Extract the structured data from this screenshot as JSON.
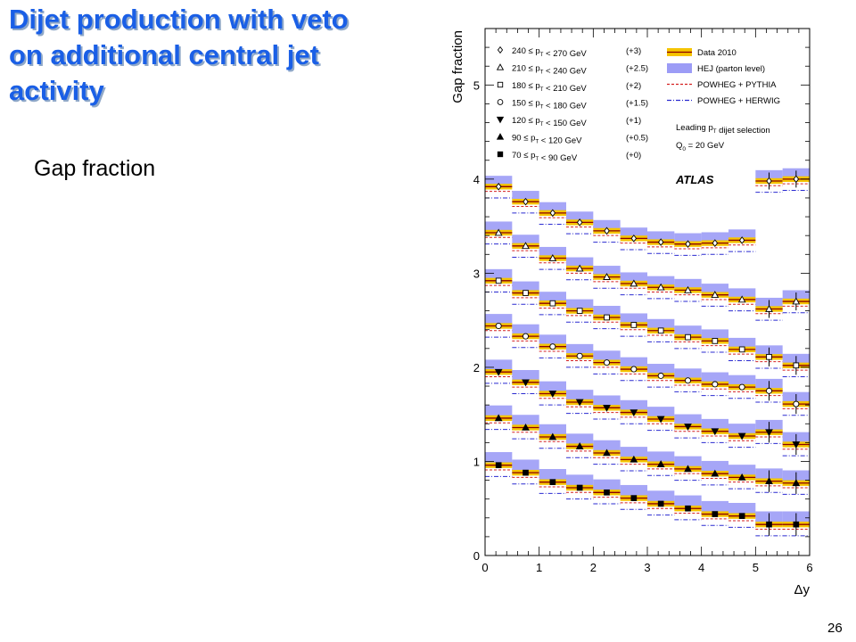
{
  "slide": {
    "title_lines": [
      "Dijet production with veto",
      "on additional central jet",
      "activity"
    ],
    "subtitle": "Gap fraction",
    "page_number": "26"
  },
  "chart_data": {
    "type": "line",
    "ylabel": "Gap fraction",
    "xlabel": "Δy",
    "xlim": [
      0,
      6
    ],
    "ylim": [
      0,
      5.6
    ],
    "x_ticks": [
      0,
      1,
      2,
      3,
      4,
      5,
      6
    ],
    "y_ticks": [
      0,
      1,
      2,
      3,
      4,
      5
    ],
    "bin_edges": [
      0,
      0.5,
      1,
      1.5,
      2,
      2.5,
      3,
      3.5,
      4,
      4.5,
      5,
      5.5,
      6
    ],
    "experiment_label": "ATLAS",
    "selection_text": [
      "Leading p_T dijet selection",
      "Q_0 = 20 GeV"
    ],
    "legend_models": [
      {
        "label": "Data 2010",
        "style": "data"
      },
      {
        "label": "HEJ (parton level)",
        "style": "hej"
      },
      {
        "label": "POWHEG + PYTHIA",
        "style": "pythia"
      },
      {
        "label": "POWHEG + HERWIG",
        "style": "herwig"
      }
    ],
    "colors": {
      "data_line": "#8b0000",
      "data_band": "#f5c400",
      "hej": "#9c9cf6",
      "pythia": "#d42020",
      "herwig": "#2a2ad0"
    },
    "series": [
      {
        "name": "240 ≤ p_T < 270 GeV",
        "offset": "(+3)",
        "marker": "diamond-open",
        "values": [
          0.92,
          0.76,
          0.64,
          0.54,
          0.45,
          0.37,
          0.33,
          0.31,
          0.32,
          0.35,
          0.98,
          1.0
        ]
      },
      {
        "name": "210 ≤ p_T < 240 GeV",
        "offset": "(+2.5)",
        "marker": "triangle-up-open",
        "values": [
          0.93,
          0.79,
          0.66,
          0.55,
          0.46,
          0.39,
          0.35,
          0.32,
          0.27,
          0.22,
          0.12,
          0.2
        ]
      },
      {
        "name": "180 ≤ p_T < 210 GeV",
        "offset": "(+2)",
        "marker": "square-open",
        "values": [
          0.92,
          0.79,
          0.68,
          0.6,
          0.53,
          0.45,
          0.39,
          0.32,
          0.28,
          0.19,
          0.11,
          0.02
        ]
      },
      {
        "name": "150 ≤ p_T < 180 GeV",
        "offset": "(+1.5)",
        "marker": "circle-open",
        "values": [
          0.94,
          0.83,
          0.72,
          0.62,
          0.55,
          0.48,
          0.41,
          0.36,
          0.32,
          0.29,
          0.25,
          0.11
        ]
      },
      {
        "name": "120 ≤ p_T < 150 GeV",
        "offset": "(+1)",
        "marker": "triangle-down-filled",
        "values": [
          0.95,
          0.84,
          0.72,
          0.63,
          0.57,
          0.52,
          0.45,
          0.37,
          0.32,
          0.27,
          0.31,
          0.18
        ]
      },
      {
        "name": "90 ≤ p_T < 120 GeV",
        "offset": "(+0.5)",
        "marker": "triangle-up-filled",
        "values": [
          0.96,
          0.86,
          0.76,
          0.66,
          0.59,
          0.52,
          0.47,
          0.42,
          0.37,
          0.33,
          0.29,
          0.27
        ]
      },
      {
        "name": "70 ≤ p_T < 90 GeV",
        "offset": "(+0)",
        "marker": "square-filled",
        "values": [
          0.96,
          0.88,
          0.78,
          0.72,
          0.67,
          0.61,
          0.55,
          0.5,
          0.44,
          0.42,
          0.33,
          0.33
        ]
      }
    ]
  }
}
